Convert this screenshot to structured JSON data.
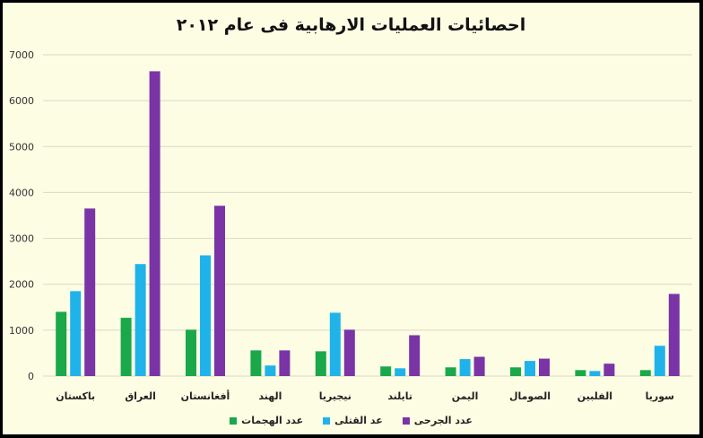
{
  "chart_data": {
    "type": "bar",
    "title": "احصائيات العمليات الارهابية فى عام ٢٠١٢",
    "categories": [
      "باكستان",
      "العراق",
      "أفغانستان",
      "الهند",
      "نيجيريا",
      "تايلند",
      "اليمن",
      "الصومال",
      "الفلبين",
      "سوريا"
    ],
    "series": [
      {
        "name": "عدد الهجمات",
        "color": "#1aa84a",
        "values": [
          1400,
          1270,
          1010,
          560,
          540,
          210,
          190,
          190,
          130,
          130
        ]
      },
      {
        "name": "عد القتلى",
        "color": "#1fb3ea",
        "values": [
          1850,
          2440,
          2630,
          230,
          1380,
          170,
          370,
          330,
          110,
          660
        ]
      },
      {
        "name": "عدد الجرحى",
        "color": "#7a34a6",
        "values": [
          3650,
          6640,
          3710,
          560,
          1010,
          890,
          420,
          380,
          270,
          1790
        ]
      }
    ],
    "ylim": [
      0,
      7000
    ],
    "yticks": [
      "0",
      "1000",
      "2000",
      "3000",
      "4000",
      "5000",
      "6000",
      "7000"
    ],
    "grid": true,
    "legend_position": "bottom"
  }
}
